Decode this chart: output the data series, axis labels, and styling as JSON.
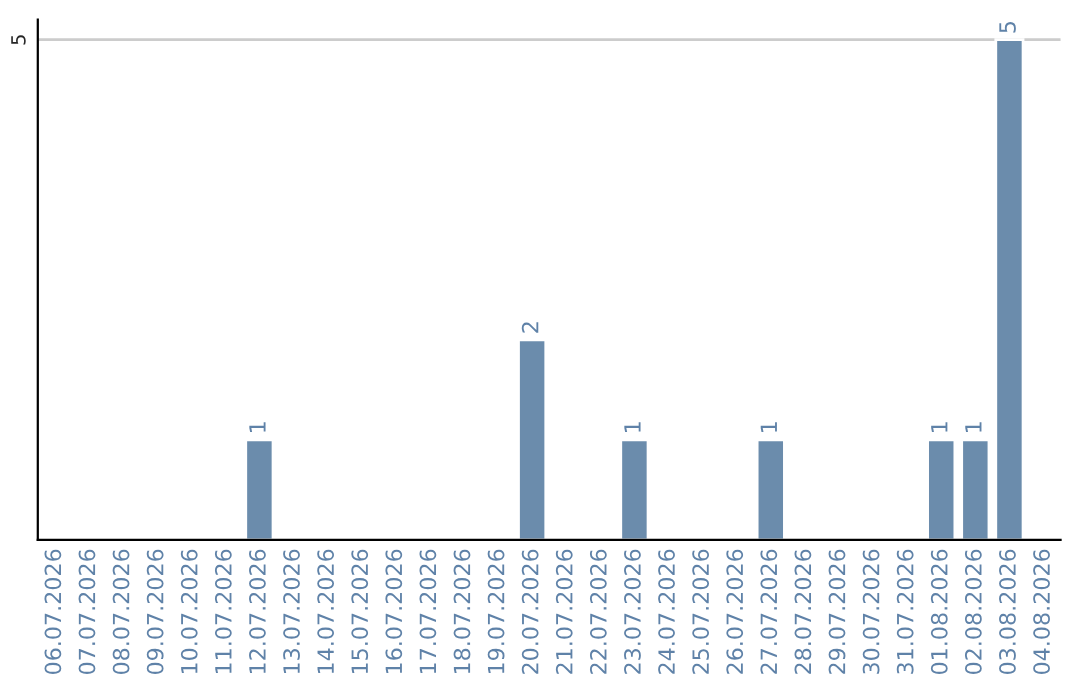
{
  "chart_data": {
    "type": "bar",
    "categories": [
      "06.07.2026",
      "07.07.2026",
      "08.07.2026",
      "09.07.2026",
      "10.07.2026",
      "11.07.2026",
      "12.07.2026",
      "13.07.2026",
      "14.07.2026",
      "15.07.2026",
      "16.07.2026",
      "17.07.2026",
      "18.07.2026",
      "19.07.2026",
      "20.07.2026",
      "21.07.2026",
      "22.07.2026",
      "23.07.2026",
      "24.07.2026",
      "25.07.2026",
      "26.07.2026",
      "27.07.2026",
      "28.07.2026",
      "29.07.2026",
      "30.07.2026",
      "31.07.2026",
      "01.08.2026",
      "02.08.2026",
      "03.08.2026",
      "04.08.2026"
    ],
    "values": [
      null,
      null,
      null,
      null,
      null,
      null,
      1,
      null,
      null,
      null,
      null,
      null,
      null,
      null,
      2,
      null,
      null,
      1,
      null,
      null,
      null,
      1,
      null,
      null,
      null,
      null,
      1,
      1,
      5,
      null
    ],
    "value_labels": [
      null,
      null,
      null,
      null,
      null,
      null,
      "1",
      null,
      null,
      null,
      null,
      null,
      null,
      null,
      "2",
      null,
      null,
      "1",
      null,
      null,
      null,
      "1",
      null,
      null,
      null,
      null,
      "1",
      "1",
      "5",
      null
    ],
    "color": "#6b8cac",
    "ylim": [
      0,
      5.2
    ],
    "yticks": [
      5
    ],
    "grid": "y",
    "legend": false
  }
}
